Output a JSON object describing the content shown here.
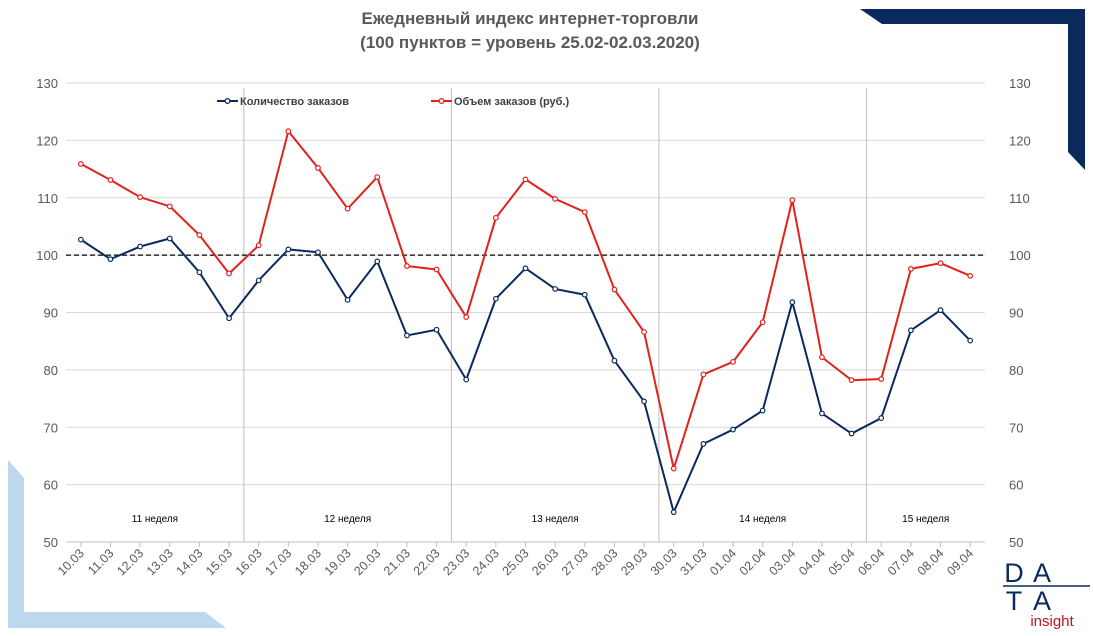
{
  "chart_data": {
    "type": "line",
    "title": "Ежедневный индекс интернет-торговли",
    "subtitle": "(100 пунктов = уровень 25.02-02.03.2020)",
    "categories": [
      "10.03",
      "11.03",
      "12.03",
      "13.03",
      "14.03",
      "15.03",
      "16.03",
      "17.03",
      "18.03",
      "19.03",
      "20.03",
      "21.03",
      "22.03",
      "23.03",
      "24.03",
      "25.03",
      "26.03",
      "27.03",
      "28.03",
      "29.03",
      "30.03",
      "31.03",
      "01.04",
      "02.04",
      "03.04",
      "04.04",
      "05.04",
      "06.04",
      "07.04",
      "08.04",
      "09.04"
    ],
    "ylim": [
      50,
      130
    ],
    "yticks": [
      50,
      60,
      70,
      80,
      90,
      100,
      110,
      120,
      130
    ],
    "reference_line": 100,
    "grid": true,
    "legend_position": "top",
    "series": [
      {
        "name": "Количество заказов",
        "color": "#0b2a5c",
        "values": [
          102.7,
          99.3,
          101.5,
          102.9,
          97.0,
          89.0,
          95.6,
          101.0,
          100.5,
          92.2,
          98.9,
          86.0,
          87.0,
          78.3,
          92.4,
          97.7,
          94.1,
          93.1,
          81.6,
          74.5,
          55.2,
          67.1,
          69.6,
          72.9,
          91.8,
          72.4,
          68.9,
          71.6,
          86.9,
          90.4,
          85.1
        ]
      },
      {
        "name": "Объем заказов (руб.)",
        "color": "#e3211c",
        "values": [
          115.9,
          113.1,
          110.1,
          108.5,
          103.5,
          96.8,
          101.7,
          121.6,
          115.2,
          108.1,
          113.6,
          98.1,
          97.5,
          89.2,
          106.5,
          113.2,
          109.8,
          107.5,
          94.0,
          86.6,
          62.8,
          79.2,
          81.4,
          88.3,
          109.6,
          82.2,
          78.2,
          78.4,
          97.6,
          98.6,
          96.4
        ]
      }
    ],
    "week_separators_after": [
      "15.03",
      "22.03",
      "29.03",
      "05.04"
    ],
    "week_labels": [
      "11 неделя",
      "12 неделя",
      "13 неделя",
      "14 неделя",
      "15 неделя"
    ]
  },
  "logo": {
    "letters": [
      "D",
      "A",
      "T",
      "A"
    ],
    "sub": "insight"
  },
  "colors": {
    "navy": "#0b2a5c",
    "red": "#e3211c",
    "light_blue": "#bdd7ee",
    "grid": "#d9d9d9"
  }
}
